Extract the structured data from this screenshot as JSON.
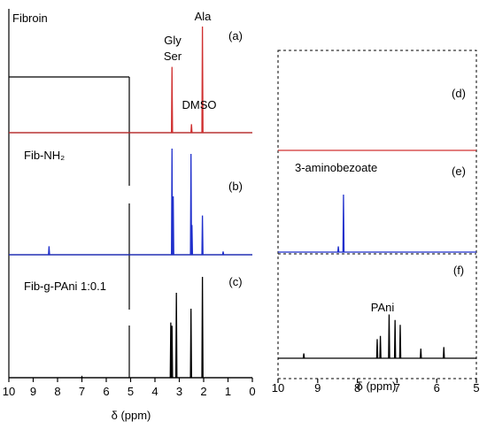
{
  "chart_data": [
    {
      "type": "line",
      "panel": "left",
      "xlabel": "δ (ppm)",
      "xlim": [
        10,
        0
      ],
      "x_reversed": true,
      "ticks": [
        10,
        9,
        8,
        7,
        6,
        5,
        4,
        3,
        2,
        1,
        0
      ],
      "grid": false,
      "series": [
        {
          "name": "Fibroin",
          "label": "(a)",
          "color": "#d03030",
          "peaks": [
            {
              "x": 3.3,
              "y": 0.62
            },
            {
              "x": 2.5,
              "y": 0.08
            },
            {
              "x": 2.05,
              "y": 1.0
            }
          ],
          "annotations": [
            {
              "text": "Gly",
              "x": 3.3
            },
            {
              "text": "Ser",
              "x": 3.3
            },
            {
              "text": "Ala",
              "x": 2.05
            },
            {
              "text": "DMSO",
              "x": 2.5
            }
          ]
        },
        {
          "name": "Fib-NH₂",
          "label": "(b)",
          "color": "#1f2fcc",
          "peaks": [
            {
              "x": 8.35,
              "y": 0.08
            },
            {
              "x": 3.3,
              "y": 1.0
            },
            {
              "x": 3.25,
              "y": 0.55
            },
            {
              "x": 2.52,
              "y": 0.95
            },
            {
              "x": 2.48,
              "y": 0.28
            },
            {
              "x": 2.05,
              "y": 0.37
            },
            {
              "x": 1.2,
              "y": 0.03
            }
          ]
        },
        {
          "name": "Fib-g-PAni 1:0.1",
          "label": "(c)",
          "color": "#000000",
          "peaks": [
            {
              "x": 3.35,
              "y": 0.52
            },
            {
              "x": 3.3,
              "y": 0.49
            },
            {
              "x": 3.12,
              "y": 0.8
            },
            {
              "x": 2.52,
              "y": 0.65
            },
            {
              "x": 2.05,
              "y": 0.95
            },
            {
              "x": 7.0,
              "y": 0.01
            }
          ]
        }
      ]
    },
    {
      "type": "line",
      "panel": "right",
      "xlabel": "δ (ppm)",
      "xlim": [
        10,
        5
      ],
      "x_reversed": true,
      "ticks": [
        10,
        9,
        8,
        7,
        6,
        5
      ],
      "grid": false,
      "series": [
        {
          "name": "",
          "label": "(d)",
          "color": "#d03030",
          "peaks": []
        },
        {
          "name": "3-aminobezoate",
          "label": "(e)",
          "color": "#1f2fcc",
          "peaks": [
            {
              "x": 8.35,
              "y": 1.0
            },
            {
              "x": 8.48,
              "y": 0.1
            }
          ]
        },
        {
          "name": "",
          "label": "(f)",
          "color": "#000000",
          "peaks": [
            {
              "x": 9.35,
              "y": 0.06
            },
            {
              "x": 7.5,
              "y": 0.24
            },
            {
              "x": 7.42,
              "y": 0.28
            },
            {
              "x": 7.2,
              "y": 0.55
            },
            {
              "x": 7.05,
              "y": 0.48
            },
            {
              "x": 6.92,
              "y": 0.42
            },
            {
              "x": 6.4,
              "y": 0.12
            },
            {
              "x": 5.82,
              "y": 0.14
            }
          ],
          "annotations": [
            {
              "text": "PAni",
              "x": 7.3
            }
          ]
        }
      ]
    }
  ]
}
